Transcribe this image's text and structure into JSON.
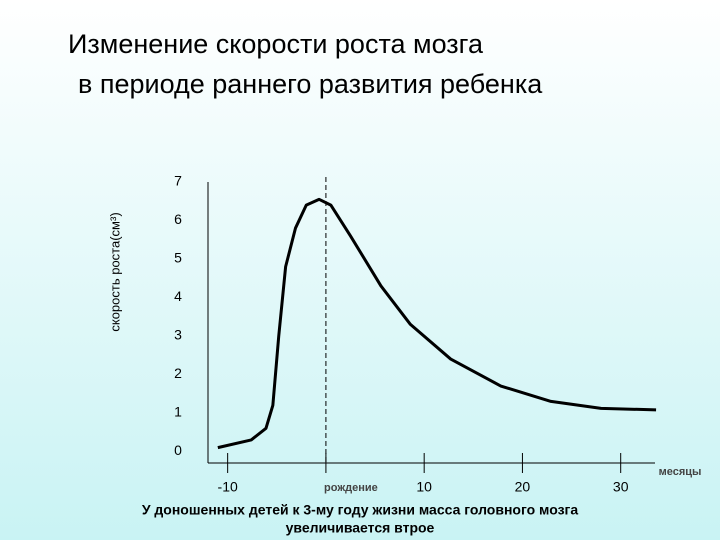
{
  "title": [
    "Изменение скорости роста мозга",
    "в периоде раннего развития ребенка"
  ],
  "chart_data": {
    "type": "line",
    "y_label": "скорость роста(см³)",
    "x_label": "месяцы",
    "x": [
      -11,
      -7.6,
      -6.1,
      -5.4,
      -4.8,
      -4.1,
      -3.1,
      -2,
      -0.7,
      0.5,
      2.5,
      5.6,
      8.6,
      12.7,
      17.8,
      22.9,
      28,
      33.6
    ],
    "series": [
      {
        "color": "#000000",
        "values": [
          0.1,
          0.3,
          0.6,
          1.2,
          3,
          4.8,
          5.8,
          6.4,
          6.55,
          6.4,
          5.6,
          4.3,
          3.3,
          2.4,
          1.7,
          1.3,
          1.12,
          1.08
        ]
      }
    ],
    "xlim": [
      -12,
      34
    ],
    "ylim": [
      -0.3,
      7
    ],
    "xticks": [
      -10,
      {
        "value": 0,
        "label": "рождение"
      },
      10,
      20,
      30
    ],
    "yticks": [
      0,
      1,
      2,
      3,
      4,
      5,
      6,
      7
    ],
    "birth_line": 0
  },
  "caption": [
    "У доношенных детей к 3-му году жизни масса головного мозга",
    "увеличивается втрое"
  ]
}
